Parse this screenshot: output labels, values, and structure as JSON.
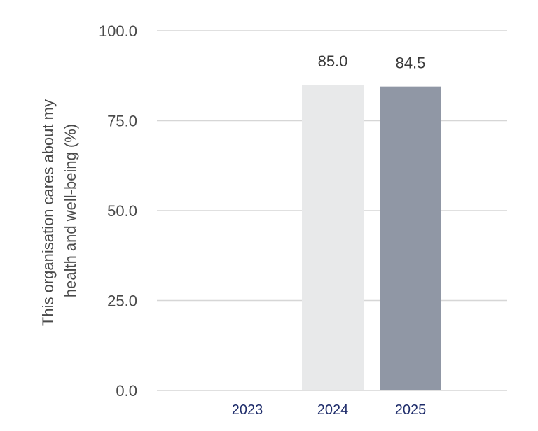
{
  "chart_data": {
    "type": "bar",
    "categories": [
      "2023",
      "2024",
      "2025"
    ],
    "values": [
      null,
      85.0,
      84.5
    ],
    "value_labels": [
      "",
      "85.0",
      "84.5"
    ],
    "bar_colors": [
      "#e8e9ea",
      "#e8e9ea",
      "#9097a5"
    ],
    "ylabel_lines": [
      "This organisation cares about my",
      "health and well-being (%)"
    ],
    "ylim": [
      0,
      100
    ],
    "yticks": [
      0,
      25,
      50,
      75,
      100
    ],
    "ytick_labels": [
      "0.0",
      "25.0",
      "50.0",
      "75.0",
      "100.0"
    ],
    "grid": true
  }
}
